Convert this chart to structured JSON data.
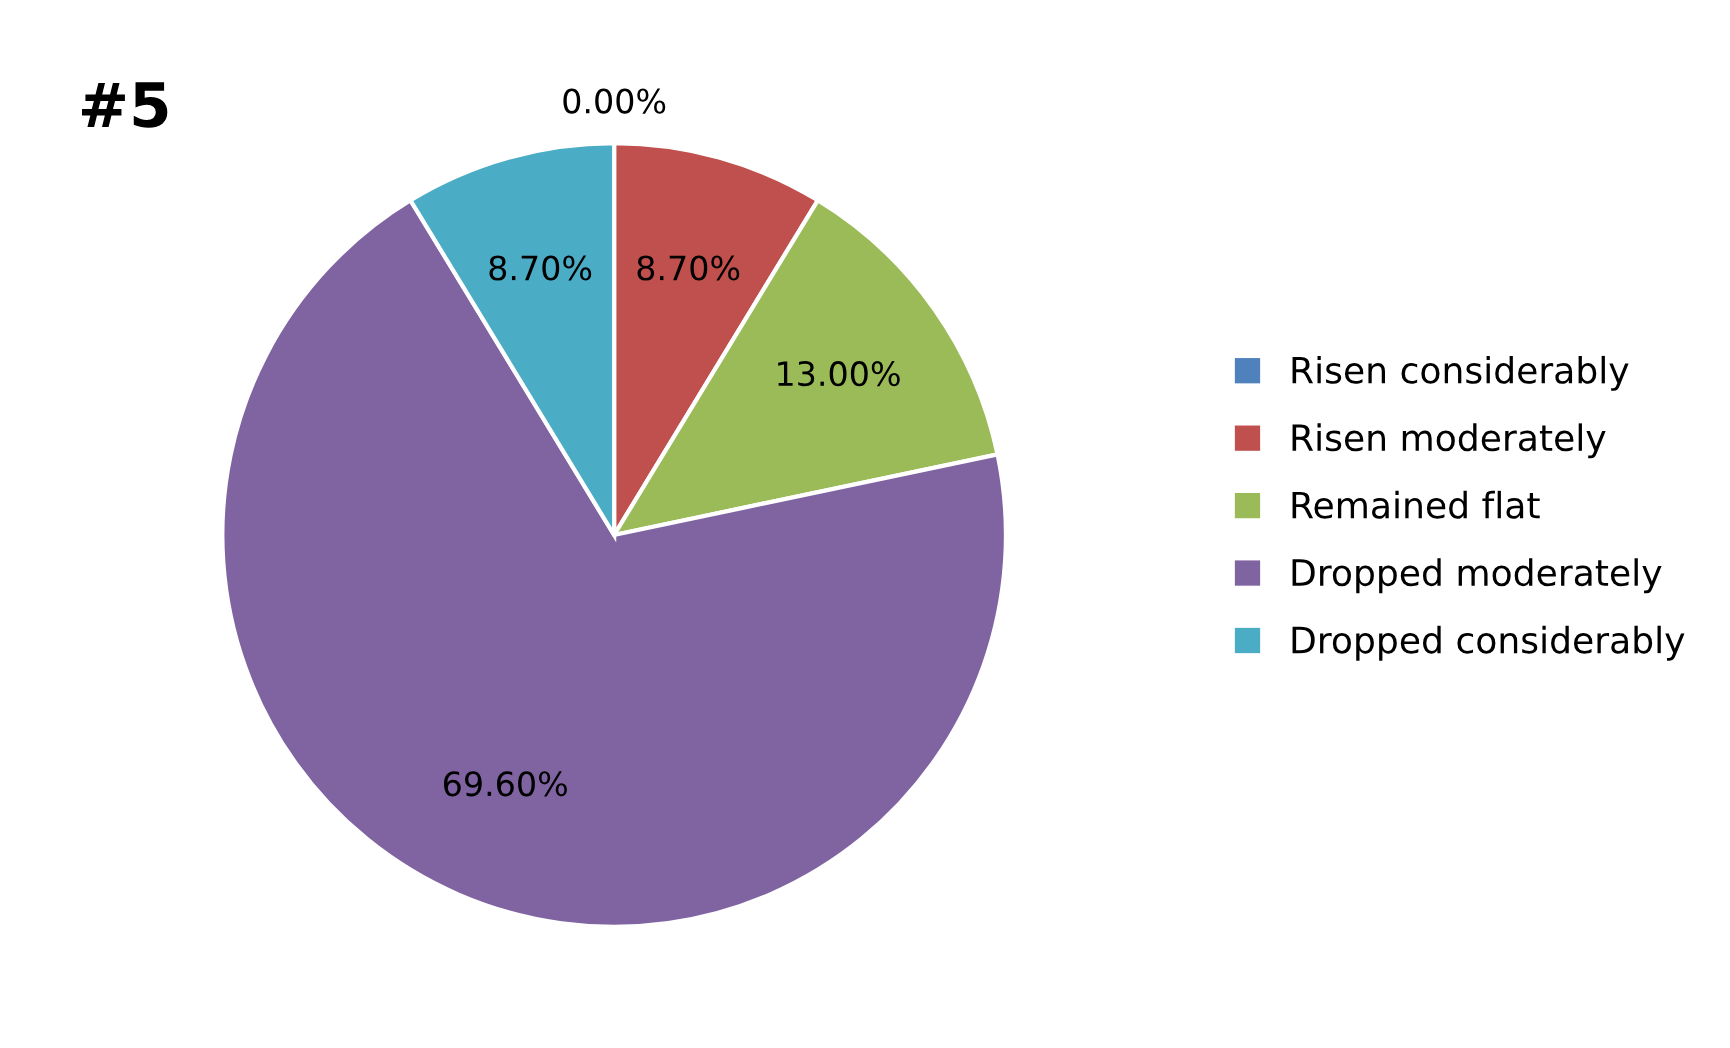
{
  "chart_data": {
    "type": "pie",
    "title": "#5",
    "categories": [
      "Risen considerably",
      "Risen moderately",
      "Remained flat",
      "Dropped moderately",
      "Dropped considerably"
    ],
    "values": [
      0.0,
      8.7,
      13.0,
      69.6,
      8.7
    ],
    "value_labels": [
      "0.00%",
      "8.70%",
      "13.00%",
      "69.60%",
      "8.70%"
    ],
    "colors": [
      "#4f81bd",
      "#c0504d",
      "#9bbb59",
      "#8064a2",
      "#4bacc6"
    ],
    "legend": "right"
  }
}
